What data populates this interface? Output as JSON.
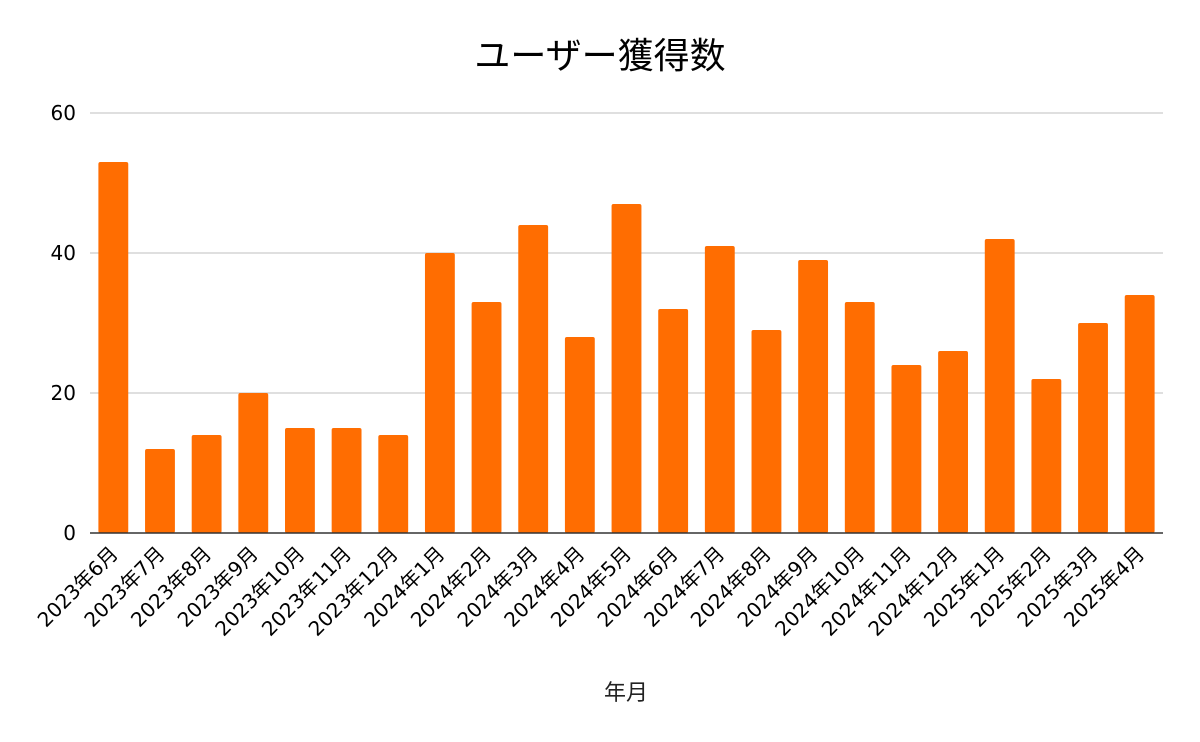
{
  "chart_data": {
    "type": "bar",
    "title": "ユーザー獲得数",
    "xlabel": "年月",
    "ylabel": "",
    "ylim": [
      0,
      60
    ],
    "yticks": [
      0,
      20,
      40,
      60
    ],
    "grid": true,
    "legend": "none",
    "bar_color": "#ff6d01",
    "categories": [
      "2023年6月",
      "2023年7月",
      "2023年8月",
      "2023年9月",
      "2023年10月",
      "2023年11月",
      "2023年12月",
      "2024年1月",
      "2024年2月",
      "2024年3月",
      "2024年4月",
      "2024年5月",
      "2024年6月",
      "2024年7月",
      "2024年8月",
      "2024年9月",
      "2024年10月",
      "2024年11月",
      "2024年12月",
      "2025年1月",
      "2025年2月",
      "2025年3月",
      "2025年4月"
    ],
    "values": [
      53,
      12,
      14,
      20,
      15,
      15,
      14,
      40,
      33,
      44,
      28,
      47,
      32,
      41,
      29,
      39,
      33,
      24,
      26,
      42,
      22,
      30,
      34
    ]
  },
  "colors": {
    "gridline": "#cccccc",
    "baseline": "#333333"
  }
}
